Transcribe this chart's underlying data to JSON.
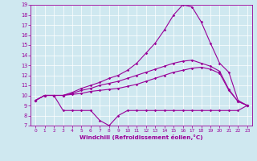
{
  "xlabel": "Windchill (Refroidissement éolien,°C)",
  "xlim": [
    -0.5,
    23.5
  ],
  "ylim": [
    7,
    19
  ],
  "xticks": [
    0,
    1,
    2,
    3,
    4,
    5,
    6,
    7,
    8,
    9,
    10,
    11,
    12,
    13,
    14,
    15,
    16,
    17,
    18,
    19,
    20,
    21,
    22,
    23
  ],
  "yticks": [
    7,
    8,
    9,
    10,
    11,
    12,
    13,
    14,
    15,
    16,
    17,
    18,
    19
  ],
  "bg_color": "#cfe8f0",
  "line_color": "#990099",
  "line1_x": [
    0,
    1,
    2,
    3,
    4,
    5,
    6,
    7,
    8,
    9,
    10,
    11,
    12,
    13,
    14,
    15,
    16,
    17,
    18,
    19,
    20,
    21,
    22,
    23
  ],
  "line1_y": [
    9.5,
    10.0,
    10.0,
    8.5,
    8.5,
    8.5,
    8.5,
    7.5,
    7.0,
    8.0,
    8.5,
    8.5,
    8.5,
    8.5,
    8.5,
    8.5,
    8.5,
    8.5,
    8.5,
    8.5,
    8.5,
    8.5,
    8.5,
    9.0
  ],
  "line2_x": [
    0,
    1,
    2,
    3,
    4,
    5,
    6,
    7,
    8,
    9,
    10,
    11,
    12,
    13,
    14,
    15,
    16,
    17,
    18,
    19,
    20,
    21,
    22,
    23
  ],
  "line2_y": [
    9.5,
    10.0,
    10.0,
    10.0,
    10.1,
    10.2,
    10.4,
    10.5,
    10.6,
    10.7,
    10.9,
    11.1,
    11.4,
    11.7,
    12.0,
    12.3,
    12.5,
    12.7,
    12.8,
    12.6,
    12.2,
    10.5,
    9.4,
    9.0
  ],
  "line3_x": [
    0,
    1,
    2,
    3,
    4,
    5,
    6,
    7,
    8,
    9,
    10,
    11,
    12,
    13,
    14,
    15,
    16,
    17,
    18,
    19,
    20,
    21,
    22,
    23
  ],
  "line3_y": [
    9.5,
    10.0,
    10.0,
    10.0,
    10.2,
    10.5,
    10.7,
    11.0,
    11.2,
    11.4,
    11.7,
    12.0,
    12.3,
    12.6,
    12.9,
    13.2,
    13.4,
    13.5,
    13.2,
    12.9,
    12.4,
    10.6,
    9.4,
    9.0
  ],
  "line4_x": [
    0,
    1,
    2,
    3,
    4,
    5,
    6,
    7,
    8,
    9,
    10,
    11,
    12,
    13,
    14,
    15,
    16,
    17,
    18,
    19,
    20,
    21,
    22,
    23
  ],
  "line4_y": [
    9.5,
    10.0,
    10.0,
    10.0,
    10.3,
    10.7,
    11.0,
    11.3,
    11.7,
    12.0,
    12.5,
    13.2,
    14.2,
    15.2,
    16.5,
    18.0,
    19.0,
    18.8,
    17.3,
    15.2,
    13.2,
    12.3,
    9.5,
    9.0
  ]
}
